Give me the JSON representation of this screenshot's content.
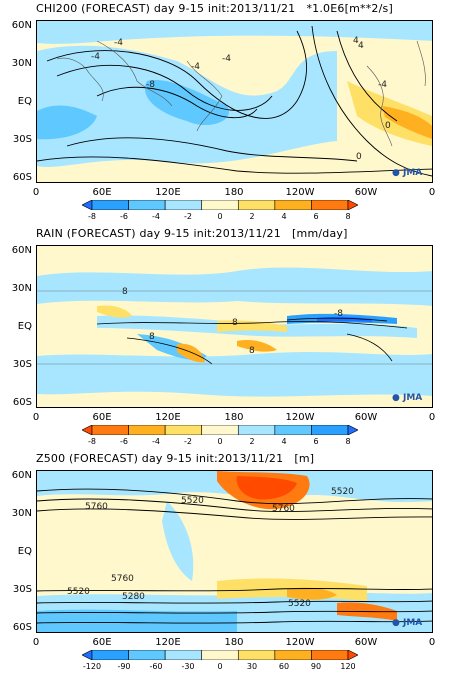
{
  "panels": [
    {
      "title": "CHI200 (FORECAST) day 9-15 init:2013/11/21",
      "unit": "*1.0E6[m**2/s]",
      "lat_labels": [
        "60N",
        "30N",
        "EQ",
        "30S",
        "60S"
      ],
      "lon_labels": [
        "0",
        "60E",
        "120E",
        "180",
        "120W",
        "60W",
        "0"
      ],
      "colorbar_ticks": [
        "-8",
        "-6",
        "-4",
        "-2",
        "0",
        "2",
        "4",
        "6",
        "8"
      ],
      "colorbar_colors": [
        "#1e6eff",
        "#2aa0ff",
        "#5ec8ff",
        "#a8e6ff",
        "#fff8cc",
        "#ffe066",
        "#ffb020",
        "#ff7a10",
        "#ff4a00"
      ],
      "contour_labels": [
        "-4",
        "-4",
        "-8",
        "-4",
        "4",
        "-4",
        "0",
        "4",
        "-4",
        "0"
      ],
      "logo": "JMA"
    },
    {
      "title": "RAIN (FORECAST) day 9-15 init:2013/11/21",
      "unit": "[mm/day]",
      "lat_labels": [
        "60N",
        "30N",
        "EQ",
        "30S",
        "60S"
      ],
      "lon_labels": [
        "0",
        "60E",
        "120E",
        "180",
        "120W",
        "60W",
        "0"
      ],
      "colorbar_ticks": [
        "-8",
        "-6",
        "-4",
        "-2",
        "0",
        "2",
        "4",
        "6",
        "8"
      ],
      "colorbar_colors": [
        "#ff4a00",
        "#ff7a10",
        "#ffb020",
        "#ffe066",
        "#fff8cc",
        "#a8e6ff",
        "#5ec8ff",
        "#2aa0ff",
        "#1e6eff"
      ],
      "contour_labels": [
        "8",
        "8",
        "8",
        "-8",
        "8"
      ],
      "logo": "JMA"
    },
    {
      "title": "Z500 (FORECAST) day 9-15 init:2013/11/21",
      "unit": "[m]",
      "lat_labels": [
        "60N",
        "30N",
        "EQ",
        "30S",
        "60S"
      ],
      "lon_labels": [
        "0",
        "60E",
        "120E",
        "180",
        "120W",
        "60W",
        "0"
      ],
      "colorbar_ticks": [
        "-120",
        "-90",
        "-60",
        "-30",
        "0",
        "30",
        "60",
        "90",
        "120"
      ],
      "colorbar_colors": [
        "#1e6eff",
        "#2aa0ff",
        "#5ec8ff",
        "#a8e6ff",
        "#fff8cc",
        "#ffe066",
        "#ffb020",
        "#ff7a10",
        "#ff4a00"
      ],
      "contour_labels": [
        "5760",
        "5520",
        "5760",
        "5520",
        "5760",
        "5520",
        "5280",
        "5520"
      ],
      "logo": "JMA"
    }
  ]
}
